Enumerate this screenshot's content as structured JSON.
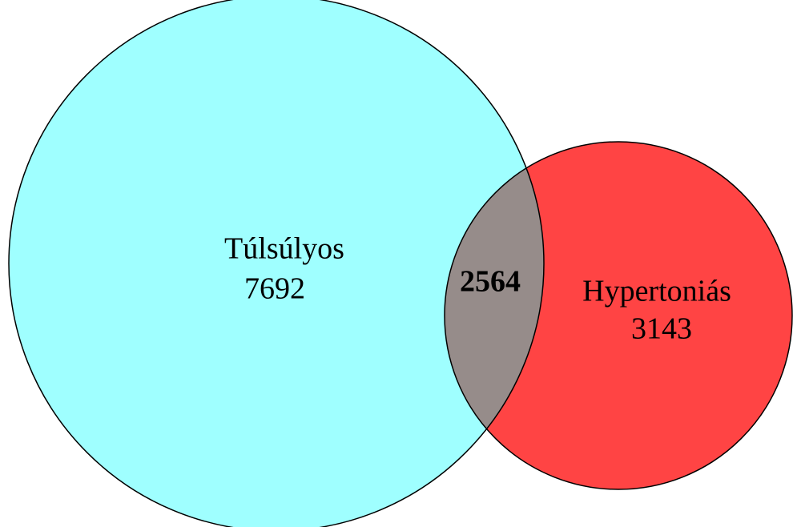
{
  "sets": [
    {
      "label": "Túlsúlyos",
      "value": 7692
    },
    {
      "label": "Hypertoniás",
      "value": 3143
    }
  ],
  "intersection": {
    "value": 2564
  }
}
